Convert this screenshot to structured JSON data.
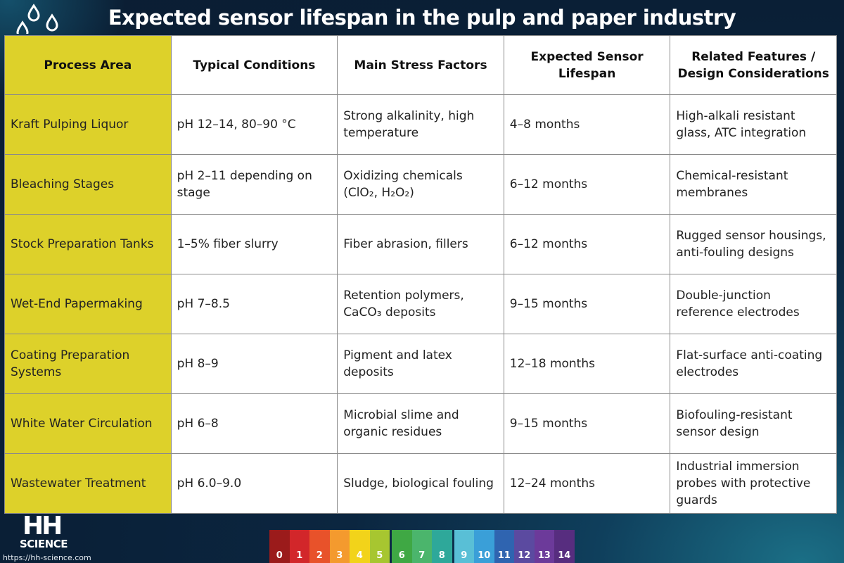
{
  "title": "Expected sensor lifespan in the pulp and paper industry",
  "columns": [
    "Process Area",
    "Typical Conditions",
    "Main Stress Factors",
    "Expected Sensor Lifespan",
    "Related Features / Design Considerations"
  ],
  "rows": [
    [
      "Kraft Pulping Liquor",
      "pH 12–14, 80–90 °C",
      "Strong alkalinity, high temperature",
      "4–8 months",
      "High-alkali resistant glass, ATC integration"
    ],
    [
      "Bleaching Stages",
      "pH 2–11 depending on stage",
      "Oxidizing chemicals (ClO₂, H₂O₂)",
      "6–12 months",
      "Chemical-resistant membranes"
    ],
    [
      "Stock Preparation Tanks",
      "1–5% fiber slurry",
      "Fiber abrasion, fillers",
      "6–12 months",
      "Rugged sensor housings, anti-fouling designs"
    ],
    [
      "Wet-End Papermaking",
      "pH 7–8.5",
      "Retention polymers, CaCO₃ deposits",
      "9–15 months",
      "Double-junction reference electrodes"
    ],
    [
      "Coating Preparation Systems",
      "pH 8–9",
      "Pigment and latex deposits",
      "12–18 months",
      "Flat-surface anti-coating electrodes"
    ],
    [
      "White Water Circulation",
      "pH 6–8",
      "Microbial slime and organic residues",
      "9–15 months",
      "Biofouling-resistant sensor design"
    ],
    [
      "Wastewater Treatment",
      "pH 6.0–9.0",
      "Sludge, biological fouling",
      "12–24 months",
      "Industrial immersion probes with protective guards"
    ]
  ],
  "logo": {
    "line1": "HH",
    "line2": "SCIENCE"
  },
  "website": "https://hh-science.com",
  "ph_scale": [
    {
      "label": "0",
      "color": "#9b1b1b"
    },
    {
      "label": "1",
      "color": "#d2262a"
    },
    {
      "label": "2",
      "color": "#e8522a"
    },
    {
      "label": "3",
      "color": "#f49a2e"
    },
    {
      "label": "4",
      "color": "#f2d31a"
    },
    {
      "label": "5",
      "color": "#a7c630"
    },
    {
      "label": "6",
      "color": "#3fa844"
    },
    {
      "label": "7",
      "color": "#4bb56c"
    },
    {
      "label": "8",
      "color": "#2ea89a"
    },
    {
      "label": "9",
      "color": "#59bfd6"
    },
    {
      "label": "10",
      "color": "#3a9fd8"
    },
    {
      "label": "11",
      "color": "#2f64b0"
    },
    {
      "label": "12",
      "color": "#5b4aa0"
    },
    {
      "label": "13",
      "color": "#6c3a9a"
    },
    {
      "label": "14",
      "color": "#572d7f"
    }
  ],
  "colors": {
    "area_column": "#ddd12a",
    "background": "#0b2640"
  }
}
